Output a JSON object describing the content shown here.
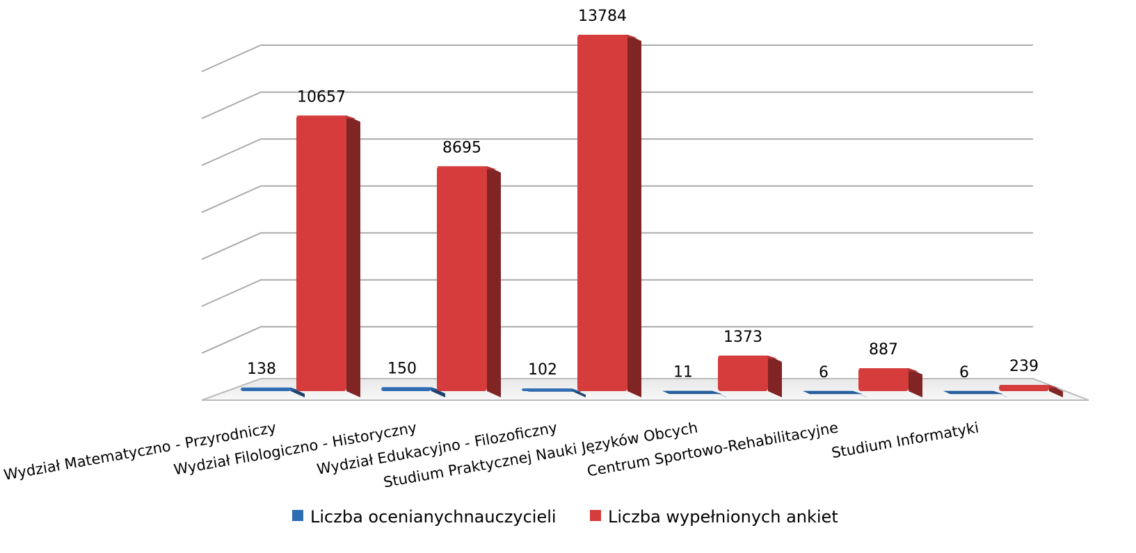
{
  "chart_data": {
    "type": "bar3d",
    "categories": [
      "Wydział Matematyczno - Przyrodniczy",
      "Wydział  Filologiczno - Historyczny",
      "Wydział Edukacyjno  - Filozoficzny",
      "Studium Praktycznej Nauki Języków Obcych",
      "Centrum Sportowo-Rehabilitacyjne",
      "Studium Informatyki"
    ],
    "series": [
      {
        "name": "Liczba ocenianychnauczycieli",
        "color": "#2e6db4",
        "values": [
          138,
          150,
          102,
          11,
          6,
          6
        ]
      },
      {
        "name": "Liczba wypełnionych  ankiet",
        "color": "#d63c3c",
        "values": [
          10657,
          8695,
          13784,
          1373,
          887,
          239
        ]
      }
    ],
    "ylim": [
      0,
      14000
    ],
    "yticks": [
      0,
      2000,
      4000,
      6000,
      8000,
      10000,
      12000,
      14000
    ],
    "grid": true
  }
}
